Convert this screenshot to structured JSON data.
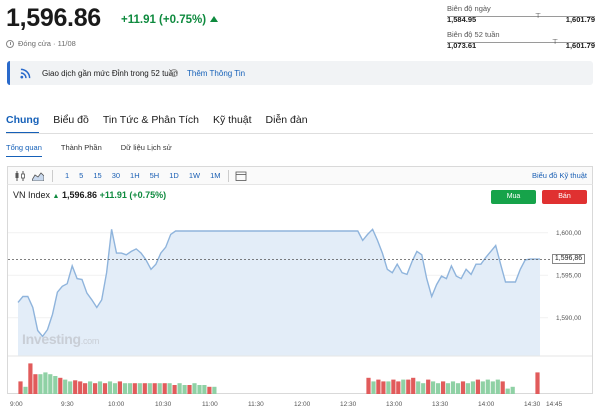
{
  "header": {
    "price": "1,596.86",
    "change": "+11.91 (+0.75%)",
    "close_status": "Đóng cửa · 11/08"
  },
  "day_range": {
    "title": "Biên độ ngày",
    "low": "1,584.95",
    "high": "1,601.79"
  },
  "week52_range": {
    "title": "Biên độ 52 tuần",
    "low": "1,073.61",
    "high": "1,601.79"
  },
  "banner": {
    "text": "Giao dịch gần mức Đỉnh trong 52 tuần",
    "link": "Thêm Thông Tin"
  },
  "tabs": [
    {
      "label": "Chung",
      "active": true
    },
    {
      "label": "Biểu đồ"
    },
    {
      "label": "Tin Tức & Phân Tích"
    },
    {
      "label": "Kỹ thuật"
    },
    {
      "label": "Diễn đàn"
    }
  ],
  "subtabs": [
    {
      "label": "Tổng quan",
      "active": true
    },
    {
      "label": "Thành Phần"
    },
    {
      "label": "Dữ liệu Lịch sử"
    }
  ],
  "toolbar": {
    "timeframes": [
      "1",
      "5",
      "15",
      "30",
      "1H",
      "5H",
      "1D",
      "1W",
      "1M"
    ],
    "technical_chart": "Biểu đồ Kỹ thuật"
  },
  "chart_header": {
    "name": "VN Index",
    "price": "1,596.86",
    "change": "+11.91 (+0.75%)",
    "buy": "Mua",
    "sell": "Bán"
  },
  "watermark": {
    "main": "Investing",
    "suffix": ".com"
  },
  "chart_data": {
    "type": "area",
    "x_ticks": [
      "9:00",
      "9:30",
      "10:00",
      "10:30",
      "11:00",
      "11:30",
      "12:00",
      "12:30",
      "13:00",
      "13:30",
      "14:00",
      "14:30",
      "14:45"
    ],
    "y_ticks": [
      "1,600,00",
      "1,595,00",
      "1,590,00"
    ],
    "ylim": [
      1585.5,
      1602.2
    ],
    "last_price_label": "1,596,86",
    "last_price": 1596.86,
    "x": [
      0,
      5,
      10,
      15,
      20,
      25,
      30,
      35,
      40,
      45,
      50,
      55,
      60,
      65,
      70,
      75,
      80,
      85,
      90,
      95,
      100,
      105,
      110,
      115,
      120,
      125,
      130,
      135,
      140,
      145,
      150,
      155,
      160,
      165,
      170,
      175,
      180,
      185,
      190,
      195,
      200,
      205,
      210,
      215,
      220,
      225,
      230,
      235,
      240,
      245,
      250,
      255,
      260,
      265,
      270,
      275,
      280,
      285,
      290,
      295,
      300,
      305,
      310,
      315,
      320,
      325,
      330,
      335,
      340,
      345,
      350,
      355,
      360,
      365,
      370,
      375,
      380,
      385,
      390,
      395,
      400,
      405,
      410,
      415,
      420,
      425,
      430,
      435,
      440,
      445,
      450,
      455,
      460,
      465,
      470,
      475,
      480,
      485,
      490,
      495,
      500,
      505,
      510,
      515,
      520,
      525,
      530
    ],
    "y": [
      1591.8,
      1592.5,
      1592.5,
      1591.2,
      1588.5,
      1587.8,
      1588.6,
      1590.4,
      1593.0,
      1593.7,
      1594.0,
      1596.1,
      1594.6,
      1594.5,
      1592.9,
      1592.1,
      1591.2,
      1592.1,
      1595.3,
      1600.4,
      1597.6,
      1597.6,
      1597.4,
      1597.8,
      1598.1,
      1597.6,
      1596.8,
      1595.7,
      1596.3,
      1597.6,
      1598.3,
      1599.8,
      1600.2,
      1600.2,
      1600.2,
      1600.2,
      1600.2,
      1600.2,
      1600.2,
      1600.2,
      1600.2,
      1600.2,
      1600.2,
      1600.2,
      1600.2,
      1600.2,
      1600.2,
      1600.2,
      1600.2,
      1600.2,
      1600.2,
      1600.2,
      1600.2,
      1600.2,
      1600.2,
      1600.2,
      1600.2,
      1600.2,
      1600.2,
      1600.2,
      1600.2,
      1600.2,
      1600.2,
      1600.2,
      1600.2,
      1600.2,
      1600.2,
      1600.2,
      1600.2,
      1600.2,
      1599.1,
      1599.8,
      1600.4,
      1599.1,
      1597.6,
      1595.7,
      1595.3,
      1596.3,
      1595.3,
      1595.1,
      1596.6,
      1597.8,
      1597.4,
      1594.6,
      1592.5,
      1593.9,
      1594.9,
      1594.6,
      1596.1,
      1594.9,
      1594.6,
      1595.7,
      1595.1,
      1596.3,
      1596.3,
      1597.1,
      1597.8,
      1598.5,
      1596.3,
      1594.2,
      1594.2,
      1594.2,
      1595.7,
      1596.8,
      1596.9,
      1596.9,
      1596.9
    ],
    "volume": [
      {
        "v": 0.35,
        "dir": "down"
      },
      {
        "v": 0.2,
        "dir": "up"
      },
      {
        "v": 0.85,
        "dir": "down"
      },
      {
        "v": 0.55,
        "dir": "down"
      },
      {
        "v": 0.55,
        "dir": "up"
      },
      {
        "v": 0.6,
        "dir": "up"
      },
      {
        "v": 0.55,
        "dir": "up"
      },
      {
        "v": 0.5,
        "dir": "up"
      },
      {
        "v": 0.45,
        "dir": "down"
      },
      {
        "v": 0.4,
        "dir": "up"
      },
      {
        "v": 0.35,
        "dir": "up"
      },
      {
        "v": 0.38,
        "dir": "down"
      },
      {
        "v": 0.35,
        "dir": "down"
      },
      {
        "v": 0.3,
        "dir": "down"
      },
      {
        "v": 0.35,
        "dir": "up"
      },
      {
        "v": 0.3,
        "dir": "down"
      },
      {
        "v": 0.35,
        "dir": "up"
      },
      {
        "v": 0.3,
        "dir": "down"
      },
      {
        "v": 0.35,
        "dir": "up"
      },
      {
        "v": 0.3,
        "dir": "up"
      },
      {
        "v": 0.35,
        "dir": "down"
      },
      {
        "v": 0.3,
        "dir": "up"
      },
      {
        "v": 0.3,
        "dir": "up"
      },
      {
        "v": 0.3,
        "dir": "down"
      },
      {
        "v": 0.3,
        "dir": "up"
      },
      {
        "v": 0.3,
        "dir": "down"
      },
      {
        "v": 0.3,
        "dir": "up"
      },
      {
        "v": 0.3,
        "dir": "down"
      },
      {
        "v": 0.3,
        "dir": "up"
      },
      {
        "v": 0.3,
        "dir": "down"
      },
      {
        "v": 0.3,
        "dir": "up"
      },
      {
        "v": 0.25,
        "dir": "down"
      },
      {
        "v": 0.3,
        "dir": "up"
      },
      {
        "v": 0.25,
        "dir": "up"
      },
      {
        "v": 0.25,
        "dir": "down"
      },
      {
        "v": 0.3,
        "dir": "up"
      },
      {
        "v": 0.25,
        "dir": "up"
      },
      {
        "v": 0.25,
        "dir": "up"
      },
      {
        "v": 0.2,
        "dir": "down"
      },
      {
        "v": 0.2,
        "dir": "up"
      },
      {
        "v": 0,
        "dir": "up"
      },
      {
        "v": 0,
        "dir": "up"
      },
      {
        "v": 0,
        "dir": "up"
      },
      {
        "v": 0,
        "dir": "up"
      },
      {
        "v": 0,
        "dir": "up"
      },
      {
        "v": 0,
        "dir": "up"
      },
      {
        "v": 0,
        "dir": "up"
      },
      {
        "v": 0,
        "dir": "up"
      },
      {
        "v": 0,
        "dir": "up"
      },
      {
        "v": 0,
        "dir": "up"
      },
      {
        "v": 0,
        "dir": "up"
      },
      {
        "v": 0,
        "dir": "up"
      },
      {
        "v": 0,
        "dir": "up"
      },
      {
        "v": 0,
        "dir": "up"
      },
      {
        "v": 0,
        "dir": "up"
      },
      {
        "v": 0,
        "dir": "up"
      },
      {
        "v": 0,
        "dir": "up"
      },
      {
        "v": 0,
        "dir": "up"
      },
      {
        "v": 0,
        "dir": "up"
      },
      {
        "v": 0,
        "dir": "up"
      },
      {
        "v": 0,
        "dir": "up"
      },
      {
        "v": 0,
        "dir": "up"
      },
      {
        "v": 0,
        "dir": "up"
      },
      {
        "v": 0,
        "dir": "up"
      },
      {
        "v": 0,
        "dir": "up"
      },
      {
        "v": 0,
        "dir": "up"
      },
      {
        "v": 0,
        "dir": "up"
      },
      {
        "v": 0,
        "dir": "up"
      },
      {
        "v": 0,
        "dir": "up"
      },
      {
        "v": 0,
        "dir": "up"
      },
      {
        "v": 0.45,
        "dir": "down"
      },
      {
        "v": 0.35,
        "dir": "up"
      },
      {
        "v": 0.4,
        "dir": "down"
      },
      {
        "v": 0.35,
        "dir": "down"
      },
      {
        "v": 0.35,
        "dir": "up"
      },
      {
        "v": 0.4,
        "dir": "down"
      },
      {
        "v": 0.35,
        "dir": "down"
      },
      {
        "v": 0.4,
        "dir": "up"
      },
      {
        "v": 0.4,
        "dir": "down"
      },
      {
        "v": 0.45,
        "dir": "down"
      },
      {
        "v": 0.35,
        "dir": "up"
      },
      {
        "v": 0.3,
        "dir": "up"
      },
      {
        "v": 0.4,
        "dir": "down"
      },
      {
        "v": 0.35,
        "dir": "up"
      },
      {
        "v": 0.3,
        "dir": "up"
      },
      {
        "v": 0.35,
        "dir": "down"
      },
      {
        "v": 0.3,
        "dir": "up"
      },
      {
        "v": 0.35,
        "dir": "up"
      },
      {
        "v": 0.3,
        "dir": "up"
      },
      {
        "v": 0.35,
        "dir": "down"
      },
      {
        "v": 0.3,
        "dir": "up"
      },
      {
        "v": 0.35,
        "dir": "up"
      },
      {
        "v": 0.4,
        "dir": "down"
      },
      {
        "v": 0.35,
        "dir": "up"
      },
      {
        "v": 0.4,
        "dir": "up"
      },
      {
        "v": 0.35,
        "dir": "up"
      },
      {
        "v": 0.4,
        "dir": "up"
      },
      {
        "v": 0.35,
        "dir": "down"
      },
      {
        "v": 0.15,
        "dir": "up"
      },
      {
        "v": 0.2,
        "dir": "up"
      },
      {
        "v": 0,
        "dir": "up"
      },
      {
        "v": 0,
        "dir": "up"
      },
      {
        "v": 0,
        "dir": "up"
      },
      {
        "v": 0,
        "dir": "up"
      },
      {
        "v": 0.6,
        "dir": "down"
      }
    ],
    "colors": {
      "line": "#8fb4dc",
      "fill": "#e3edf8",
      "up": "#8fd1a5",
      "down": "#e15b5b"
    }
  }
}
